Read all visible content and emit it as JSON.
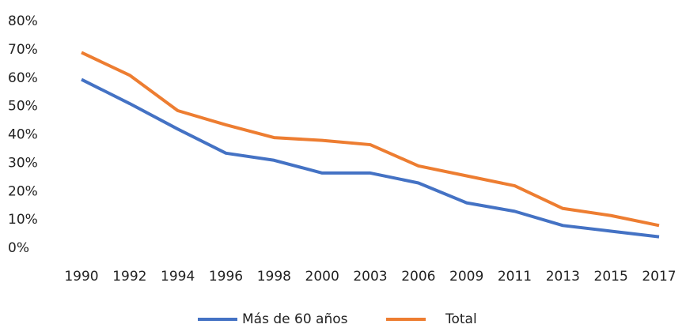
{
  "chart_data": {
    "type": "line",
    "categories": [
      "1990",
      "1992",
      "1994",
      "1996",
      "1998",
      "2000",
      "2003",
      "2006",
      "2009",
      "2011",
      "2013",
      "2015",
      "2017"
    ],
    "series": [
      {
        "name": "Más de 60 años",
        "color": "#4472c4",
        "values": [
          59.5,
          51,
          42,
          33.5,
          31,
          26.5,
          26.5,
          23,
          16,
          13,
          8,
          6,
          4
        ]
      },
      {
        "name": "Total",
        "color": "#ed7d31",
        "values": [
          69,
          61,
          48.5,
          43.5,
          39,
          38,
          36.5,
          29,
          25.5,
          22,
          14,
          11.5,
          8
        ]
      }
    ],
    "ylim": [
      0,
      80
    ],
    "yticks": [
      {
        "value": 0,
        "label": "0%"
      },
      {
        "value": 10,
        "label": "10%"
      },
      {
        "value": 20,
        "label": "20%"
      },
      {
        "value": 30,
        "label": "30%"
      },
      {
        "value": 40,
        "label": "40%"
      },
      {
        "value": 50,
        "label": "50%"
      },
      {
        "value": 60,
        "label": "60%"
      },
      {
        "value": 70,
        "label": "70%"
      },
      {
        "value": 80,
        "label": "80%"
      }
    ],
    "grid": false,
    "legend": "bottom"
  }
}
